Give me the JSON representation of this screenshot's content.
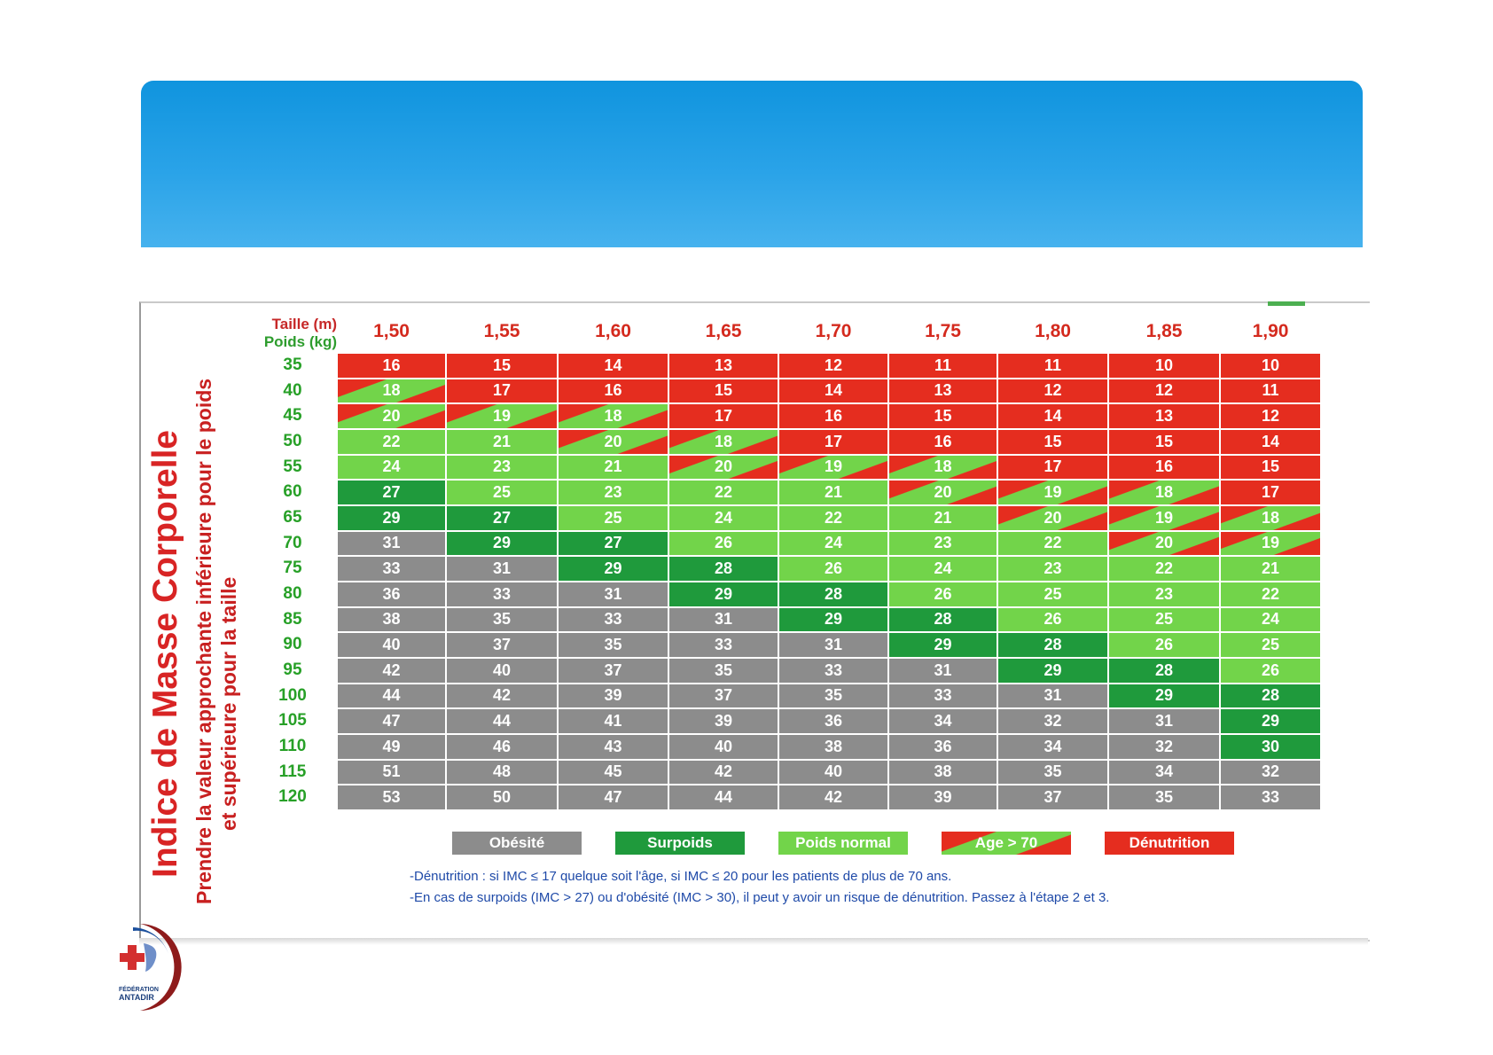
{
  "chart_data": {
    "type": "table",
    "title": "Indice de Masse Corporelle",
    "subtitle_lines": [
      "Prendre la valeur approchante inférieure pour le poids",
      "et supérieure pour la taille"
    ],
    "row_header_label": "Poids (kg)",
    "column_header_label": "Taille (m)",
    "columns": [
      "1,50",
      "1,55",
      "1,60",
      "1,65",
      "1,70",
      "1,75",
      "1,80",
      "1,85",
      "1,90"
    ],
    "rows": [
      {
        "weight": "35",
        "values": [
          16,
          15,
          14,
          13,
          12,
          11,
          11,
          10,
          10
        ]
      },
      {
        "weight": "40",
        "values": [
          18,
          17,
          16,
          15,
          14,
          13,
          12,
          12,
          11
        ]
      },
      {
        "weight": "45",
        "values": [
          20,
          19,
          18,
          17,
          16,
          15,
          14,
          13,
          12
        ]
      },
      {
        "weight": "50",
        "values": [
          22,
          21,
          20,
          18,
          17,
          16,
          15,
          15,
          14
        ]
      },
      {
        "weight": "55",
        "values": [
          24,
          23,
          21,
          20,
          19,
          18,
          17,
          16,
          15
        ]
      },
      {
        "weight": "60",
        "values": [
          27,
          25,
          23,
          22,
          21,
          20,
          19,
          18,
          17
        ]
      },
      {
        "weight": "65",
        "values": [
          29,
          27,
          25,
          24,
          22,
          21,
          20,
          19,
          18
        ]
      },
      {
        "weight": "70",
        "values": [
          31,
          29,
          27,
          26,
          24,
          23,
          22,
          20,
          19
        ]
      },
      {
        "weight": "75",
        "values": [
          33,
          31,
          29,
          28,
          26,
          24,
          23,
          22,
          21
        ]
      },
      {
        "weight": "80",
        "values": [
          36,
          33,
          31,
          29,
          28,
          26,
          25,
          23,
          22
        ]
      },
      {
        "weight": "85",
        "values": [
          38,
          35,
          33,
          31,
          29,
          28,
          26,
          25,
          24
        ]
      },
      {
        "weight": "90",
        "values": [
          40,
          37,
          35,
          33,
          31,
          29,
          28,
          26,
          25
        ]
      },
      {
        "weight": "95",
        "values": [
          42,
          40,
          37,
          35,
          33,
          31,
          29,
          28,
          26
        ]
      },
      {
        "weight": "100",
        "values": [
          44,
          42,
          39,
          37,
          35,
          33,
          31,
          29,
          28
        ]
      },
      {
        "weight": "105",
        "values": [
          47,
          44,
          41,
          39,
          36,
          34,
          32,
          31,
          29
        ]
      },
      {
        "weight": "110",
        "values": [
          49,
          46,
          43,
          40,
          38,
          36,
          34,
          32,
          30
        ]
      },
      {
        "weight": "115",
        "values": [
          51,
          48,
          45,
          42,
          40,
          38,
          35,
          34,
          32
        ]
      },
      {
        "weight": "120",
        "values": [
          53,
          50,
          47,
          44,
          42,
          39,
          37,
          35,
          33
        ]
      }
    ],
    "categories": [
      {
        "key": "obesite",
        "label": "Obésité",
        "color": "#8c8c8c"
      },
      {
        "key": "surpoids",
        "label": "Surpoids",
        "color": "#1f9a3c"
      },
      {
        "key": "normal",
        "label": "Poids normal",
        "color": "#72d44a"
      },
      {
        "key": "age70",
        "label": "Age > 70",
        "color": "#72d44a",
        "stripe_color": "#e52d1f"
      },
      {
        "key": "denutrition",
        "label": "Dénutrition",
        "color": "#e52d1f"
      }
    ],
    "notes": [
      "-Dénutrition : si IMC ≤ 17 quelque soit l'âge, si IMC ≤ 20 pour les patients de plus de 70 ans.",
      "-En cas de surpoids (IMC > 27) ou d'obésité (IMC > 30), il peut y avoir un risque de dénutrition. Passez à l'étape 2 et 3."
    ]
  },
  "logo": {
    "name": "antadir-logo",
    "text_line1": "FÉDÉRATION",
    "text_line2": "ANTADIR"
  }
}
